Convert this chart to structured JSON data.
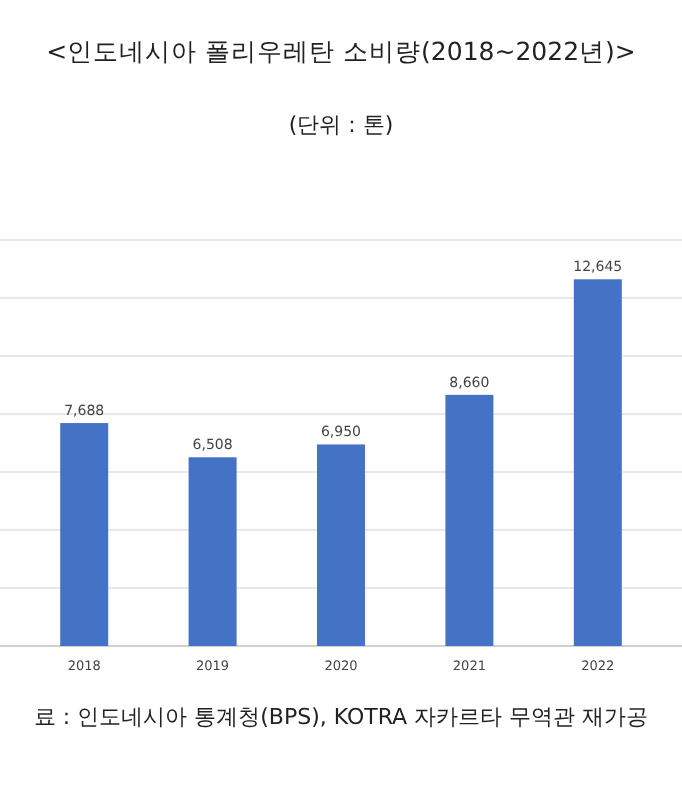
{
  "chart_data": {
    "type": "bar",
    "title": "<인도네시아 폴리우레탄 소비량(2018~2022년)>",
    "subtitle": "(단위 : 톤)",
    "categories": [
      "2018",
      "2019",
      "2020",
      "2021",
      "2022"
    ],
    "values": [
      7688,
      6508,
      6950,
      8660,
      12645
    ],
    "color": "#4472c4",
    "data_labels": true,
    "value_labels": [
      "7,688",
      "6,508",
      "6,950",
      "8,660",
      "12,645"
    ],
    "ylim": [
      0,
      14000
    ],
    "yticks": [
      {
        "value": 0,
        "label": null
      },
      {
        "value": 2000,
        "label": null
      },
      {
        "value": 4000,
        "label": null
      },
      {
        "value": 6000,
        "label": null
      },
      {
        "value": 8000,
        "label": null
      },
      {
        "value": 10000,
        "label": null
      },
      {
        "value": 12000,
        "label": null
      },
      {
        "value": 14000,
        "label": null
      }
    ],
    "tick_labels": "x",
    "grid": "y",
    "annotations": [
      "료 : 인도네시아 통계청(BPS), KOTRA 자카르타 무역관 재가공"
    ]
  }
}
